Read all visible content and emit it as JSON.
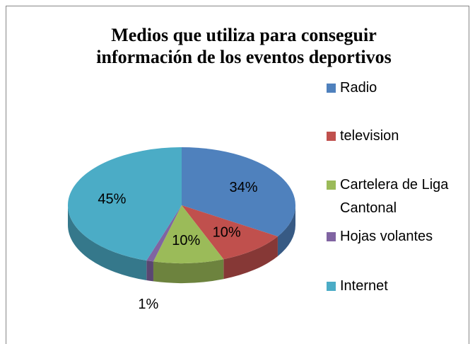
{
  "chart_data": {
    "type": "pie3d",
    "title": "Medios que utiliza para conseguir información de los eventos deportivos",
    "categories": [
      "Radio",
      "television",
      "Cartelera de Liga Cantonal",
      "Hojas volantes",
      "Internet"
    ],
    "values": [
      34,
      10,
      10,
      1,
      45
    ],
    "value_labels": [
      "34%",
      "10%",
      "10%",
      "1%",
      "45%"
    ],
    "colors": [
      "#4f81bd",
      "#c0504d",
      "#9bbb59",
      "#8064a2",
      "#4bacc6"
    ],
    "legend": "right"
  }
}
